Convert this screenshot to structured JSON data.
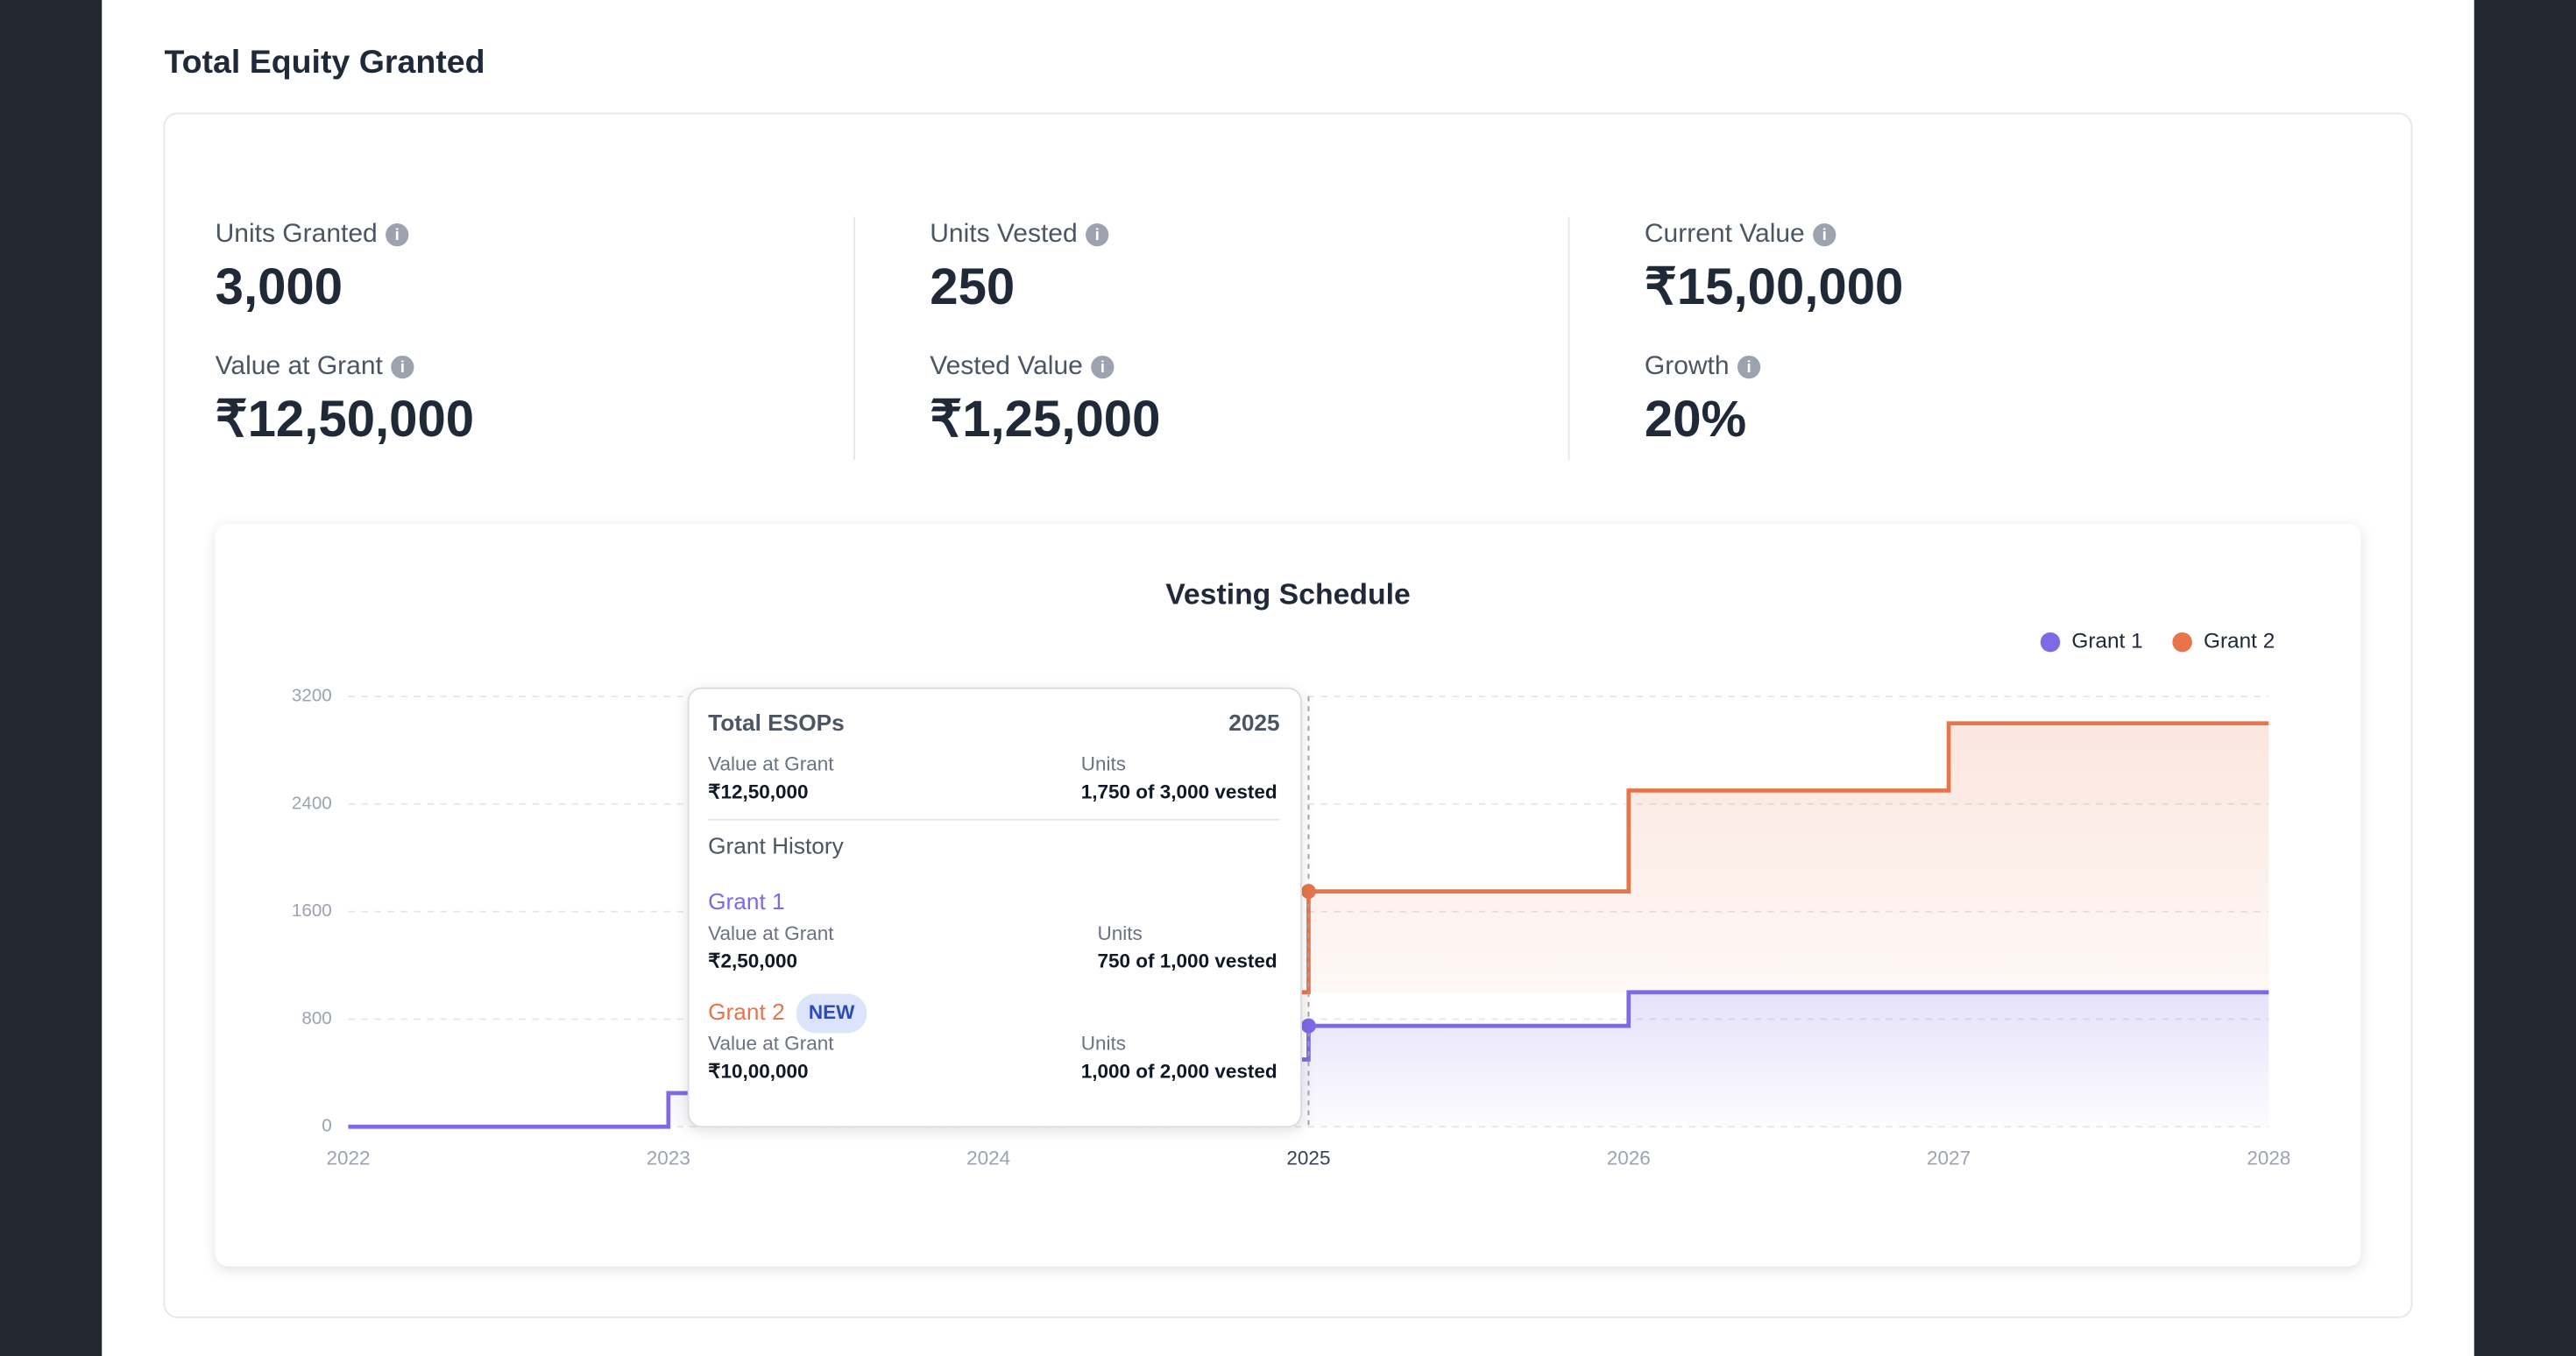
{
  "header": {
    "title": "Total Equity Granted"
  },
  "stats": [
    {
      "label": "Units Granted",
      "value": "3,000"
    },
    {
      "label": "Value at Grant",
      "value": "₹12,50,000"
    },
    {
      "label": "Units Vested",
      "value": "250"
    },
    {
      "label": "Vested Value",
      "value": "₹1,25,000"
    },
    {
      "label": "Current Value",
      "value": "₹15,00,000"
    },
    {
      "label": "Growth",
      "value": "20%"
    }
  ],
  "chart_data": {
    "type": "line",
    "step": true,
    "stacked": true,
    "title": "Vesting Schedule",
    "categories": [
      "2022",
      "2023",
      "2024",
      "2025",
      "2026",
      "2027",
      "2028"
    ],
    "series": [
      {
        "name": "Grant 1",
        "color": "#7c6ae6",
        "values": [
          0,
          250,
          500,
          750,
          1000,
          1000,
          1000
        ]
      },
      {
        "name": "Grant 2",
        "color": "#e8744a",
        "values": [
          null,
          null,
          500,
          1000,
          1500,
          2000,
          2000
        ]
      }
    ],
    "ylim": [
      0,
      3200
    ],
    "yticks": [
      0,
      800,
      1600,
      2400,
      3200
    ],
    "grid": true,
    "legend": "top-right"
  },
  "tooltip": {
    "title": "Total ESOPs",
    "year": "2025",
    "value_label": "Value at Grant",
    "value": "₹12,50,000",
    "units_label": "Units",
    "units": "1,750 of 3,000 vested",
    "history_title": "Grant History",
    "grants": [
      {
        "name": "Grant 1",
        "value_label": "Value at Grant",
        "value": "₹2,50,000",
        "units_label": "Units",
        "units": "750 of 1,000 vested"
      },
      {
        "name": "Grant 2",
        "badge": "NEW",
        "value_label": "Value at Grant",
        "value": "₹10,00,000",
        "units_label": "Units",
        "units": "1,000 of 2,000 vested"
      }
    ]
  }
}
